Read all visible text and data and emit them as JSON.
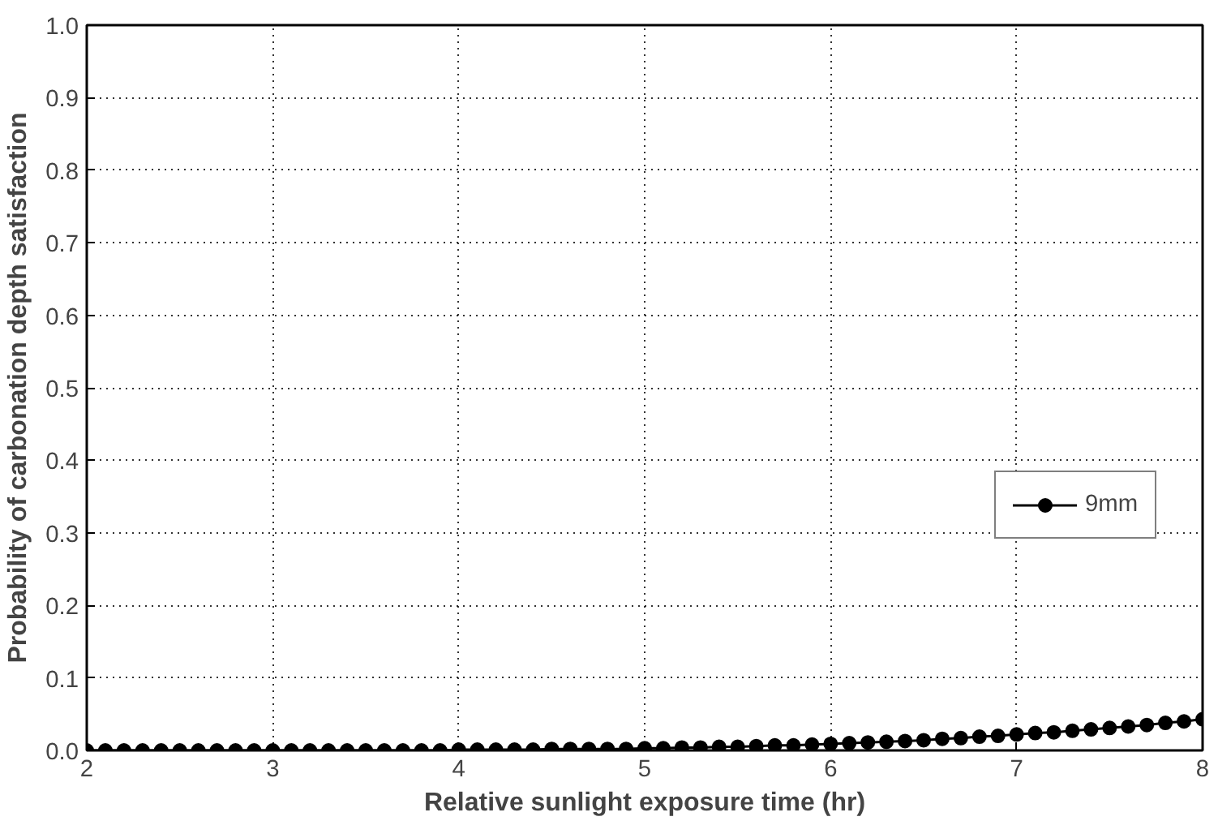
{
  "chart_data": {
    "type": "line",
    "xlabel": "Relative sunlight exposure time (hr)",
    "ylabel": "Probability of carbonation depth satisfaction",
    "x": [
      2.0,
      2.1,
      2.2,
      2.3,
      2.4,
      2.5,
      2.6,
      2.7,
      2.8,
      2.9,
      3.0,
      3.1,
      3.2,
      3.3,
      3.4,
      3.5,
      3.6,
      3.7,
      3.8,
      3.9,
      4.0,
      4.1,
      4.2,
      4.3,
      4.4,
      4.5,
      4.6,
      4.7,
      4.8,
      4.9,
      5.0,
      5.1,
      5.2,
      5.3,
      5.4,
      5.5,
      5.6,
      5.7,
      5.8,
      5.9,
      6.0,
      6.1,
      6.2,
      6.3,
      6.4,
      6.5,
      6.6,
      6.7,
      6.8,
      6.9,
      7.0,
      7.1,
      7.2,
      7.3,
      7.4,
      7.5,
      7.6,
      7.7,
      7.8,
      7.9,
      8.0
    ],
    "series": [
      {
        "name": "9mm",
        "color": "#000000",
        "values": [
          0,
          0,
          0,
          0,
          0,
          0,
          0,
          0,
          0,
          0,
          0,
          0,
          0,
          0,
          0,
          0,
          0,
          0,
          0,
          0,
          0.001,
          0.001,
          0.001,
          0.001,
          0.001,
          0.002,
          0.002,
          0.002,
          0.002,
          0.002,
          0.003,
          0.003,
          0.004,
          0.004,
          0.005,
          0.005,
          0.006,
          0.007,
          0.007,
          0.008,
          0.009,
          0.01,
          0.011,
          0.012,
          0.013,
          0.014,
          0.016,
          0.017,
          0.019,
          0.02,
          0.022,
          0.024,
          0.025,
          0.027,
          0.029,
          0.031,
          0.033,
          0.035,
          0.038,
          0.04,
          0.043
        ]
      }
    ],
    "xlim": [
      2,
      8
    ],
    "xticks": [
      2,
      3,
      4,
      5,
      6,
      7,
      8
    ],
    "ylim": [
      0,
      1
    ],
    "yticks": [
      {
        "value": 0,
        "label": "0.0"
      },
      {
        "value": 0.1,
        "label": "0.1"
      },
      {
        "value": 0.2,
        "label": "0.2"
      },
      {
        "value": 0.3,
        "label": "0.3"
      },
      {
        "value": 0.4,
        "label": "0.4"
      },
      {
        "value": 0.5,
        "label": "0.5"
      },
      {
        "value": 0.6,
        "label": "0.6"
      },
      {
        "value": 0.7,
        "label": "0.7"
      },
      {
        "value": 0.8,
        "label": "0.8"
      },
      {
        "value": 0.9,
        "label": "0.9"
      },
      {
        "value": 1,
        "label": "1.0"
      }
    ],
    "grid": true,
    "legend": "right",
    "marker": "circle",
    "line_style": "solid"
  }
}
